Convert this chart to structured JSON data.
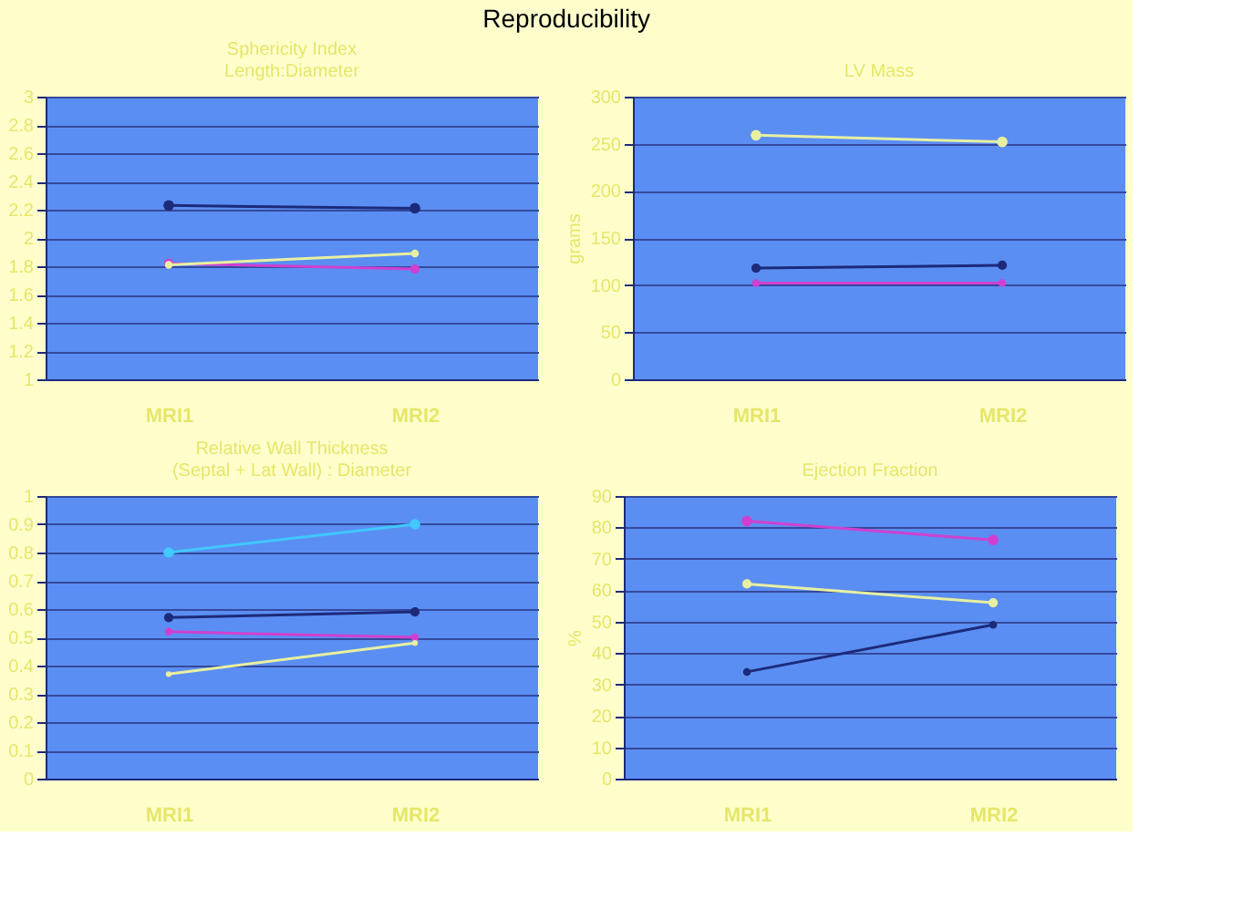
{
  "chart_data": [
    {
      "type": "other",
      "title": "Reproducibility"
    },
    {
      "type": "line",
      "title": [
        "Sphericity Index",
        "Length:Diameter"
      ],
      "categories": [
        "MRI1",
        "MRI2"
      ],
      "ylim": [
        1,
        3
      ],
      "yticks": [
        1,
        1.2,
        1.4,
        1.6,
        1.8,
        2,
        2.2,
        2.4,
        2.6,
        2.8,
        3
      ],
      "grid": "y",
      "marker": "circle",
      "line_style": "solid",
      "series": [
        {
          "color": "#1c2a7a",
          "values": [
            2.23,
            2.21
          ]
        },
        {
          "color": "#d040d0",
          "values": [
            1.82,
            1.78
          ]
        },
        {
          "color": "#e8f0a0",
          "values": [
            1.81,
            1.89
          ]
        }
      ]
    },
    {
      "type": "line",
      "title": "LV Mass",
      "ylabel": "grams",
      "categories": [
        "MRI1",
        "MRI2"
      ],
      "ylim": [
        0,
        300
      ],
      "yticks": [
        0,
        50,
        100,
        150,
        200,
        250,
        300
      ],
      "grid": "y",
      "marker": "circle",
      "line_style": "solid",
      "series": [
        {
          "color": "#e8f0a0",
          "values": [
            259,
            252
          ]
        },
        {
          "color": "#1c2a7a",
          "values": [
            118,
            121
          ]
        },
        {
          "color": "#d040d0",
          "values": [
            102,
            102
          ]
        }
      ]
    },
    {
      "type": "line",
      "title": [
        "Relative Wall Thickness",
        "(Septal + Lat Wall) : Diameter"
      ],
      "categories": [
        "MRI1",
        "MRI2"
      ],
      "ylim": [
        0,
        1
      ],
      "yticks": [
        0,
        0.1,
        0.2,
        0.3,
        0.4,
        0.5,
        0.6,
        0.7,
        0.8,
        0.9,
        1
      ],
      "grid": "y",
      "marker": "circle",
      "line_style": "solid",
      "series": [
        {
          "color": "#40c8ff",
          "values": [
            0.8,
            0.9
          ]
        },
        {
          "color": "#1c2a7a",
          "values": [
            0.57,
            0.59
          ]
        },
        {
          "color": "#d040d0",
          "values": [
            0.52,
            0.5
          ]
        },
        {
          "color": "#e8f0a0",
          "values": [
            0.37,
            0.48
          ]
        }
      ]
    },
    {
      "type": "line",
      "title": "Ejection Fraction",
      "ylabel": "%",
      "categories": [
        "MRI1",
        "MRI2"
      ],
      "ylim": [
        0,
        90
      ],
      "yticks": [
        0,
        10,
        20,
        30,
        40,
        50,
        60,
        70,
        80,
        90
      ],
      "grid": "y",
      "marker": "circle",
      "line_style": "solid",
      "series": [
        {
          "color": "#d040d0",
          "values": [
            82,
            76
          ]
        },
        {
          "color": "#e8f0a0",
          "values": [
            62,
            56
          ]
        },
        {
          "color": "#1c2a7a",
          "values": [
            34,
            49
          ]
        }
      ]
    }
  ]
}
